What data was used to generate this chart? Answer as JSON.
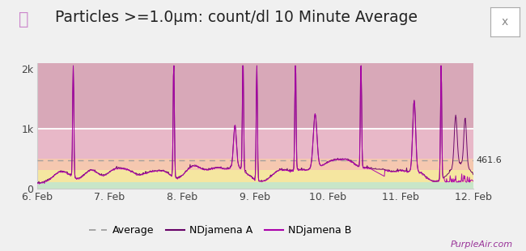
{
  "title": "Particles >=1.0μm: count/dl 10 Minute Average",
  "ylim": [
    0,
    2100
  ],
  "ytick_labels": [
    "0",
    "1k",
    "2k"
  ],
  "average_value": 461.6,
  "x_tick_labels": [
    "6. Feb",
    "7. Feb",
    "8. Feb",
    "9. Feb",
    "10. Feb",
    "11. Feb",
    "12. Feb"
  ],
  "zone_green": {
    "ymin": 0,
    "ymax": 100,
    "color": "#c8e6c8"
  },
  "zone_yellow": {
    "ymin": 100,
    "ymax": 300,
    "color": "#f5e6a0"
  },
  "zone_orange": {
    "ymin": 300,
    "ymax": 500,
    "color": "#f5c8b0"
  },
  "zone_pink": {
    "ymin": 500,
    "ymax": 1000,
    "color": "#e8b8c8"
  },
  "zone_mauve": {
    "ymin": 1000,
    "ymax": 2100,
    "color": "#d8a8b8"
  },
  "line_color_A": "#660066",
  "line_color_B": "#aa00aa",
  "avg_line_color": "#999999",
  "fig_bg": "#f0f0f0",
  "footer_text": "PurpleAir.com",
  "legend_avg": "Average",
  "legend_A": "NDjamena A",
  "legend_B": "NDjamena B"
}
